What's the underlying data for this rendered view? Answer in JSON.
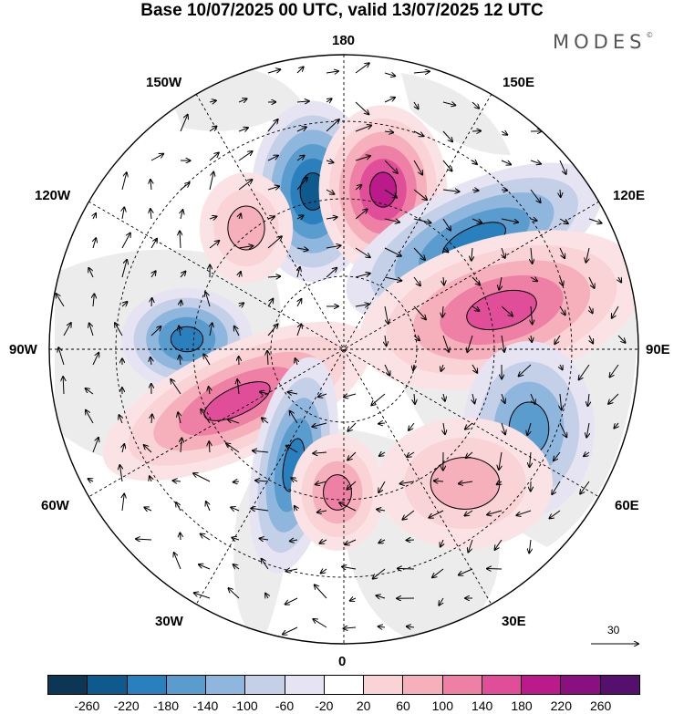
{
  "title": "Base 10/07/2025 00 UTC, valid 13/07/2025 12 UTC",
  "brand": "MODES",
  "brand_mark": "©",
  "longitude_labels": {
    "top": "180",
    "bottom": "0",
    "left": "90W",
    "right": "90E",
    "upper_left_1": "150W",
    "upper_left_2": "120W",
    "upper_right_1": "150E",
    "upper_right_2": "120E",
    "lower_left_1": "60W",
    "lower_left_2": "30W",
    "lower_right_1": "60E",
    "lower_right_2": "30E"
  },
  "vector_scale_label": "30",
  "colorbar": {
    "ticks": [
      "-260",
      "-220",
      "-180",
      "-140",
      "-100",
      "-60",
      "-20",
      "20",
      "60",
      "100",
      "140",
      "180",
      "220",
      "260"
    ],
    "colors": [
      "#0b3654",
      "#0f5a8c",
      "#2a80bd",
      "#5a9ccd",
      "#8fb6dd",
      "#c4cfe8",
      "#e6e4f2",
      "#ffffff",
      "#f9d3d6",
      "#f5b0bb",
      "#ee7fa5",
      "#e04e9a",
      "#bb1a8a",
      "#8a0f7f",
      "#55106e"
    ]
  },
  "anomalies": [
    {
      "sign": "neg",
      "level": 5,
      "name": "anomaly-bering-low"
    },
    {
      "sign": "pos",
      "level": 5,
      "name": "anomaly-kamchatka-high"
    },
    {
      "sign": "neg",
      "level": 4,
      "name": "anomaly-siberia-low"
    },
    {
      "sign": "pos",
      "level": 4,
      "name": "anomaly-central-siberia-high"
    },
    {
      "sign": "neg",
      "level": 4,
      "name": "anomaly-hudson-low"
    },
    {
      "sign": "pos",
      "level": 4,
      "name": "anomaly-labrador-high"
    },
    {
      "sign": "neg",
      "level": 4,
      "name": "anomaly-atlantic-low"
    },
    {
      "sign": "pos",
      "level": 3,
      "name": "anomaly-britain-high"
    },
    {
      "sign": "neg",
      "level": 3,
      "name": "anomaly-west-siberia-low"
    },
    {
      "sign": "pos",
      "level": 2,
      "name": "anomaly-alaska-high"
    },
    {
      "sign": "pos",
      "level": 2,
      "name": "anomaly-russia-high"
    }
  ]
}
